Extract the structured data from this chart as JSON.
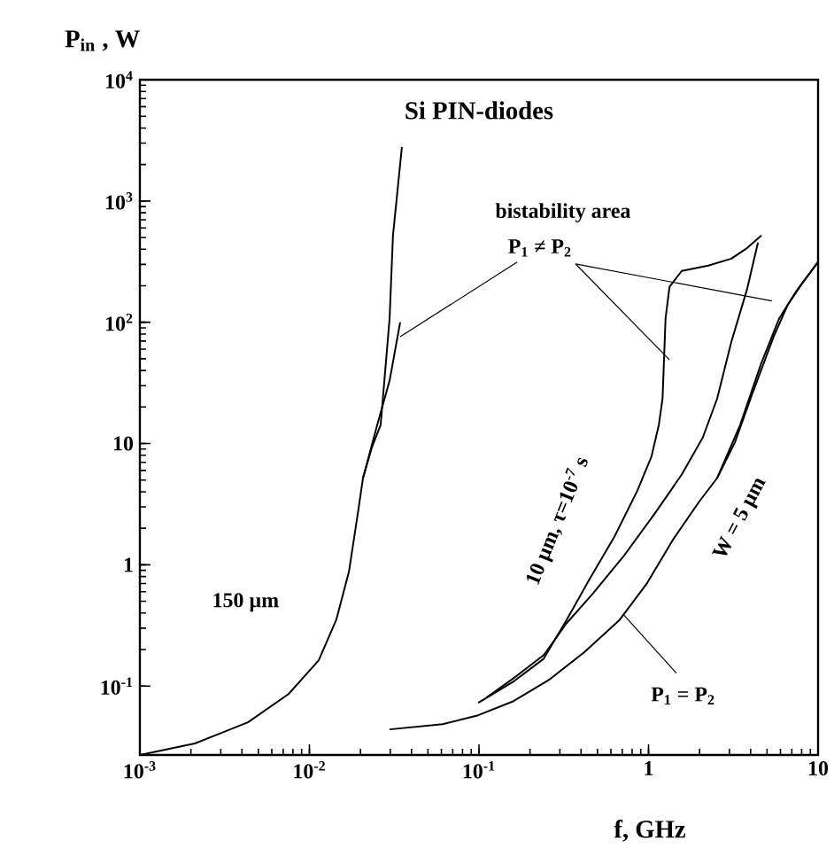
{
  "chart_data": {
    "type": "line",
    "title": "Si PIN-diodes",
    "xlabel": "f, GHz",
    "ylabel": "P$_{in}$ , W",
    "log": "xy",
    "xlim": [
      0.001,
      10
    ],
    "ylim": [
      0.027,
      10000
    ],
    "xticks": [
      {
        "value": 0.001,
        "label": "10$^{-3}$"
      },
      {
        "value": 0.01,
        "label": "10$^{-2}$"
      },
      {
        "value": 0.1,
        "label": "10$^{-1}$"
      },
      {
        "value": 1,
        "label": "1"
      },
      {
        "value": 10,
        "label": "10"
      }
    ],
    "yticks": [
      {
        "value": 0.1,
        "label": "10$^{-1}$"
      },
      {
        "value": 1,
        "label": "1"
      },
      {
        "value": 10,
        "label": "10"
      },
      {
        "value": 100,
        "label": "10$^{2}$"
      },
      {
        "value": 1000,
        "label": "10$^{3}$"
      },
      {
        "value": 10000,
        "label": "10$^{4}$"
      }
    ],
    "marker": "none",
    "line_style": "solid",
    "annotations": [
      "bistability area",
      {
        "text": "P$_{1}$ ≠ P$_{2}$",
        "x": 0.0343,
        "y": 76
      },
      "150 µm",
      "10 µm, τ=10$^{-7}$ s",
      "W = 5 µm",
      {
        "text": "P$_{1}$ = P$_{2}$",
        "x": 0.71,
        "y": 0.39
      }
    ],
    "series": [
      {
        "color": "#000000",
        "x": [
          0.001,
          0.00211,
          0.00434,
          0.00753,
          0.01135,
          0.0144,
          0.0171,
          0.0193,
          0.0207,
          0.0233,
          0.0263,
          0.0297,
          0.0311,
          0.0351
        ],
        "values": [
          0.027,
          0.0336,
          0.0502,
          0.0859,
          0.163,
          0.352,
          0.875,
          2.65,
          5.19,
          9.2,
          14.2,
          107,
          519,
          2790
        ]
      },
      {
        "color": "#000000",
        "x": [
          0.0207,
          0.0251,
          0.0297,
          0.0343
        ],
        "values": [
          5.19,
          14.2,
          33,
          100
        ]
      },
      {
        "color": "#000000",
        "x": [
          0.0989,
          0.16,
          0.241,
          0.329,
          0.45,
          0.63,
          0.861,
          1.04,
          1.15,
          1.21,
          1.26,
          1.33,
          1.57,
          2.25,
          3.08,
          3.82,
          4.63
        ],
        "values": [
          0.0727,
          0.109,
          0.168,
          0.352,
          0.764,
          1.71,
          4.11,
          7.78,
          14.2,
          23.5,
          107,
          196,
          265,
          293,
          335,
          410,
          519
        ]
      },
      {
        "color": "#000000",
        "x": [
          0.111,
          0.16,
          0.241,
          0.329,
          0.472,
          0.727,
          1.09,
          1.57,
          2.09,
          2.54,
          3.08,
          3.82,
          4.42
        ],
        "values": [
          0.0804,
          0.116,
          0.18,
          0.33,
          0.583,
          1.22,
          2.65,
          5.55,
          11.2,
          23.5,
          69,
          189,
          454
        ]
      },
      {
        "color": "#000000",
        "x": [
          0.0297,
          0.0611,
          0.0989,
          0.16,
          0.258,
          0.418,
          0.676,
          0.97,
          1.39,
          2.0,
          2.54,
          3.23,
          4.11,
          5.48,
          6.64,
          8.05,
          10
        ],
        "values": [
          0.0439,
          0.0485,
          0.0574,
          0.0751,
          0.112,
          0.19,
          0.352,
          0.69,
          1.6,
          3.35,
          5.19,
          10.2,
          26.1,
          76.4,
          140,
          209,
          314
        ]
      },
      {
        "color": "#000000",
        "x": [
          2.54,
          3.47,
          4.63,
          5.89,
          7.49,
          10
        ],
        "values": [
          5.19,
          14.2,
          46.1,
          107,
          183,
          314
        ]
      }
    ]
  }
}
